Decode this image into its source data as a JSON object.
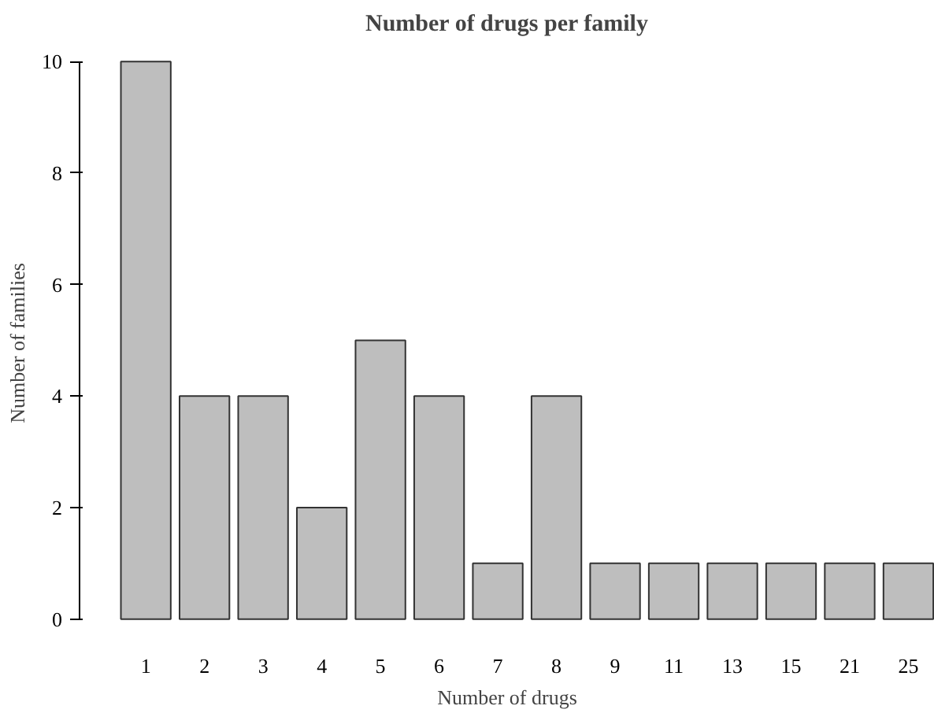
{
  "chart_data": {
    "type": "bar",
    "title": "Number of drugs per family",
    "xlabel": "Number of drugs",
    "ylabel": "Number of families",
    "categories": [
      "1",
      "2",
      "3",
      "4",
      "5",
      "6",
      "7",
      "8",
      "9",
      "11",
      "13",
      "15",
      "21",
      "25"
    ],
    "values": [
      10,
      4,
      4,
      2,
      5,
      4,
      1,
      4,
      1,
      1,
      1,
      1,
      1,
      1
    ],
    "color": "#bebebe",
    "ylim": [
      0,
      10
    ],
    "yticks": [
      0,
      2,
      4,
      6,
      8,
      10
    ],
    "grid": false
  }
}
